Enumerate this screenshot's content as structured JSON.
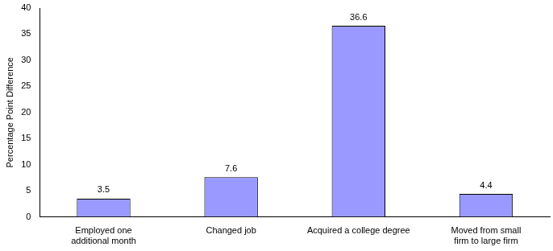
{
  "chart_data": {
    "type": "bar",
    "y_label": "Percentage Point Difference",
    "categories": [
      "Employed one additional month",
      "Changed job",
      "Acquired a college degree",
      "Moved from small firm to large firm"
    ],
    "values": [
      3.5,
      7.6,
      36.6,
      4.4
    ],
    "color": "#9999ff",
    "ylim": [
      0,
      40
    ],
    "yticks": [
      0,
      5,
      10,
      15,
      20,
      25,
      30,
      35,
      40
    ],
    "grid": false,
    "data_labels": true
  }
}
